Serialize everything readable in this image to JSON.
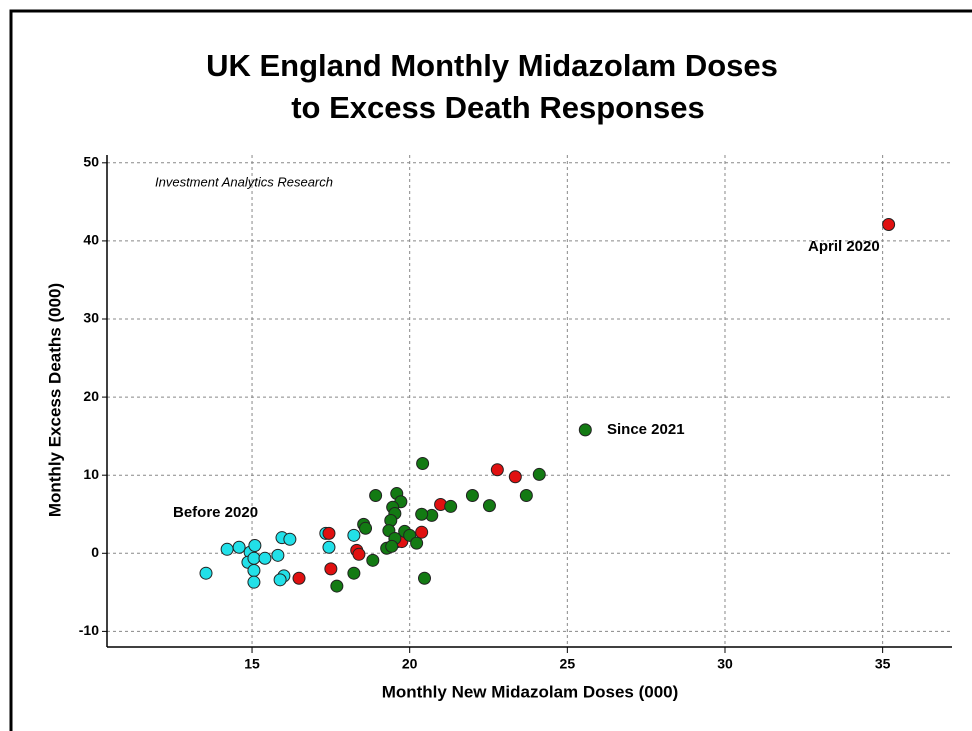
{
  "chart_data": {
    "type": "scatter",
    "title": [
      "UK England Monthly Midazolam Doses",
      "to Excess Death Responses"
    ],
    "x_label": "Monthly New Midazolam Doses (000)",
    "y_label": "Monthly Excess Deaths (000)",
    "annotations": [
      "Investment Analytics Research",
      "April 2020",
      "Since 2021",
      "Before 2020"
    ],
    "xlim": [
      10.4,
      37.2
    ],
    "ylim": [
      -12,
      51
    ],
    "xticks": [
      15,
      20,
      25,
      30,
      35
    ],
    "yticks": [
      -10,
      0,
      10,
      20,
      30,
      40,
      50
    ],
    "grid": true,
    "series": [
      {
        "color": "#22e0e8",
        "x": [
          13.54,
          14.21,
          14.59,
          14.94,
          15.09,
          14.87,
          15.06,
          15.06,
          15.06,
          15.41,
          15.82,
          15.95,
          16.2,
          16.01,
          15.89,
          17.34,
          17.44,
          18.23
        ],
        "values": [
          -2.55,
          0.51,
          0.77,
          0.13,
          1.0,
          -1.15,
          -0.64,
          -2.2,
          -3.7,
          -0.64,
          -0.26,
          2.0,
          1.8,
          -2.9,
          -3.4,
          2.55,
          0.77,
          2.3
        ]
      },
      {
        "color": "#e01010",
        "x": [
          35.19,
          16.49,
          17.44,
          17.5,
          18.32,
          18.39,
          19.62,
          19.75,
          20.38,
          20.98,
          22.78,
          23.35
        ],
        "values": [
          42.1,
          -3.2,
          2.55,
          -2.0,
          0.38,
          -0.13,
          1.5,
          1.5,
          2.7,
          6.25,
          10.7,
          9.8
        ]
      },
      {
        "color": "#137a13",
        "x": [
          25.57,
          20.41,
          24.11,
          23.7,
          21.99,
          22.53,
          21.3,
          20.7,
          20.38,
          18.92,
          19.59,
          19.72,
          19.46,
          19.53,
          19.4,
          18.54,
          18.6,
          19.34,
          19.84,
          20.0,
          19.53,
          20.22,
          19.27,
          19.43,
          18.83,
          18.23,
          17.69,
          20.47
        ],
        "values": [
          15.8,
          11.5,
          10.1,
          7.4,
          7.4,
          6.1,
          6.0,
          4.85,
          5.0,
          7.4,
          7.65,
          6.6,
          5.9,
          5.1,
          4.2,
          3.7,
          3.2,
          2.9,
          2.8,
          2.3,
          1.9,
          1.3,
          0.64,
          0.89,
          -0.9,
          -2.55,
          -4.2,
          -3.2
        ]
      }
    ]
  }
}
